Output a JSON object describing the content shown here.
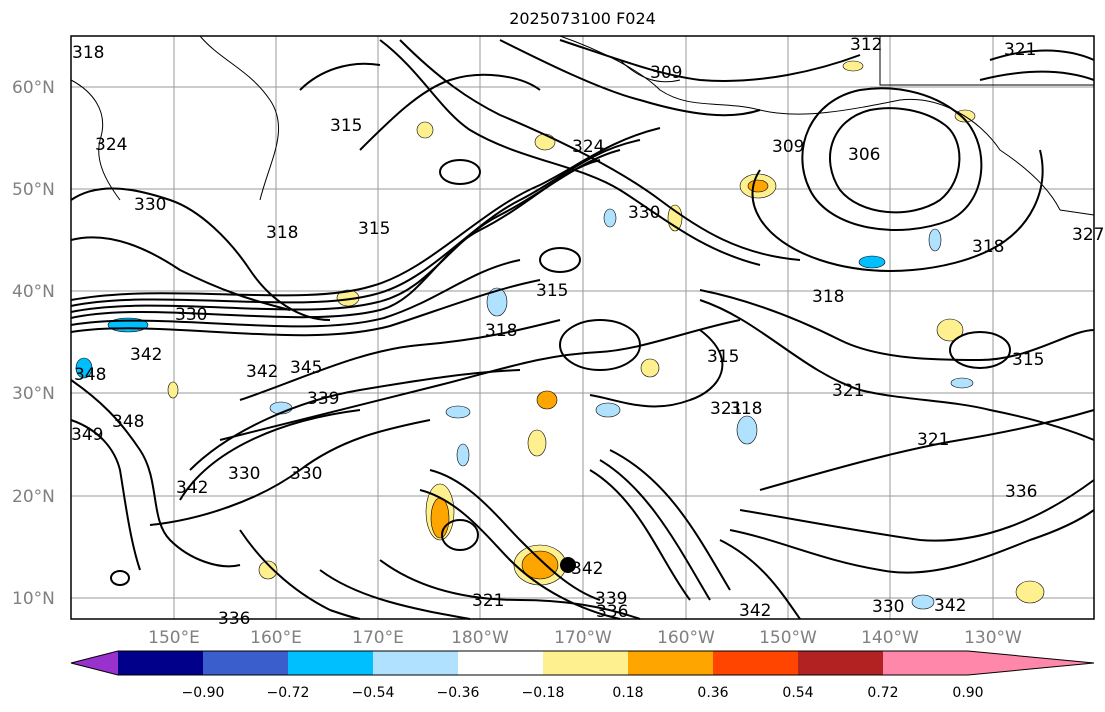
{
  "title": "2025073100 F024",
  "map": {
    "lat_labels": [
      "60°N",
      "50°N",
      "40°N",
      "30°N",
      "20°N",
      "10°N"
    ],
    "lon_labels": [
      "150°E",
      "160°E",
      "170°E",
      "180°W",
      "170°W",
      "160°W",
      "150°W",
      "140°W",
      "130°W"
    ],
    "contour_labels": [
      "318",
      "324",
      "330",
      "318",
      "315",
      "315",
      "330",
      "342",
      "345",
      "339",
      "342",
      "330",
      "330",
      "342",
      "348",
      "349",
      "336",
      "321",
      "339",
      "336",
      "342",
      "330",
      "342",
      "315",
      "318",
      "315",
      "321",
      "318",
      "321",
      "336",
      "306",
      "309",
      "318",
      "318",
      "327",
      "321",
      "324",
      "330",
      "309",
      "312",
      "315",
      "321",
      "342",
      "348"
    ]
  },
  "colorbar": {
    "ticks": [
      "−0.90",
      "−0.72",
      "−0.54",
      "−0.36",
      "−0.18",
      "0.18",
      "0.36",
      "0.54",
      "0.72",
      "0.90"
    ],
    "colors": [
      "#9932cc",
      "#00008b",
      "#3a5fcd",
      "#00bfff",
      "#b0e2ff",
      "#ffffff",
      "#fff08f",
      "#ffa500",
      "#ff4500",
      "#b22222",
      "#ff88aa"
    ]
  }
}
